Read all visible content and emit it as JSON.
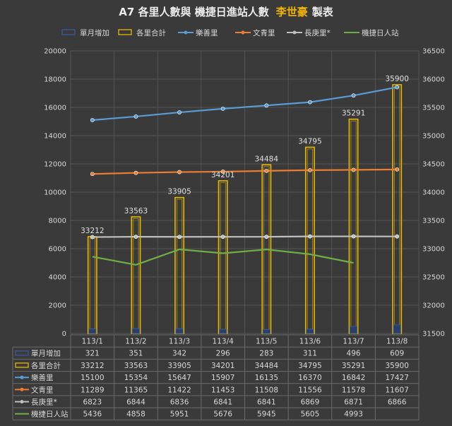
{
  "title": {
    "main": "A7 各里人數與 機捷日進站人數",
    "author": "李世豪",
    "suffix": "製表"
  },
  "colors": {
    "background": "#3a3a3a",
    "grid": "#555555",
    "text": "#d8d8d8",
    "monthly_increase": "#3b5a9a",
    "village_total": "#e6b800",
    "leshan": "#5b9bd5",
    "wenyu": "#ed7d31",
    "changgeng": "#bfbfbf",
    "mrt": "#70ad47"
  },
  "chart_data": {
    "type": "bar",
    "categories": [
      "113/1",
      "113/2",
      "113/3",
      "113/4",
      "113/5",
      "113/6",
      "113/7",
      "113/8"
    ],
    "left_axis": {
      "min": 0,
      "max": 20000,
      "step": 2000
    },
    "right_axis": {
      "min": 31500,
      "max": 36500,
      "step": 500
    },
    "grid": true,
    "legend_position": "top",
    "series": [
      {
        "key": "monthly_increase",
        "name": "單月增加",
        "type": "bar",
        "axis": "left",
        "style": "outline-blue",
        "values": [
          321,
          351,
          342,
          296,
          283,
          311,
          496,
          609
        ]
      },
      {
        "key": "village_total",
        "name": "各里合計",
        "type": "bar",
        "axis": "right",
        "style": "outline-yellow",
        "data_labels": true,
        "values": [
          33212,
          33563,
          33905,
          34201,
          34484,
          34795,
          35291,
          35900
        ]
      },
      {
        "key": "leshan",
        "name": "樂善里",
        "type": "line",
        "axis": "left",
        "values": [
          15100,
          15354,
          15647,
          15907,
          16135,
          16370,
          16842,
          17427
        ]
      },
      {
        "key": "wenyu",
        "name": "文青里",
        "type": "line",
        "axis": "left",
        "values": [
          11289,
          11365,
          11422,
          11453,
          11508,
          11556,
          11578,
          11607
        ]
      },
      {
        "key": "changgeng",
        "name": "長庚里*",
        "type": "line",
        "axis": "left",
        "values": [
          6823,
          6844,
          6836,
          6841,
          6841,
          6869,
          6871,
          6866
        ]
      },
      {
        "key": "mrt",
        "name": "機捷日人站",
        "type": "line",
        "axis": "left",
        "marker": false,
        "values": [
          5436,
          4858,
          5951,
          5676,
          5945,
          5605,
          4993,
          null
        ]
      }
    ]
  }
}
